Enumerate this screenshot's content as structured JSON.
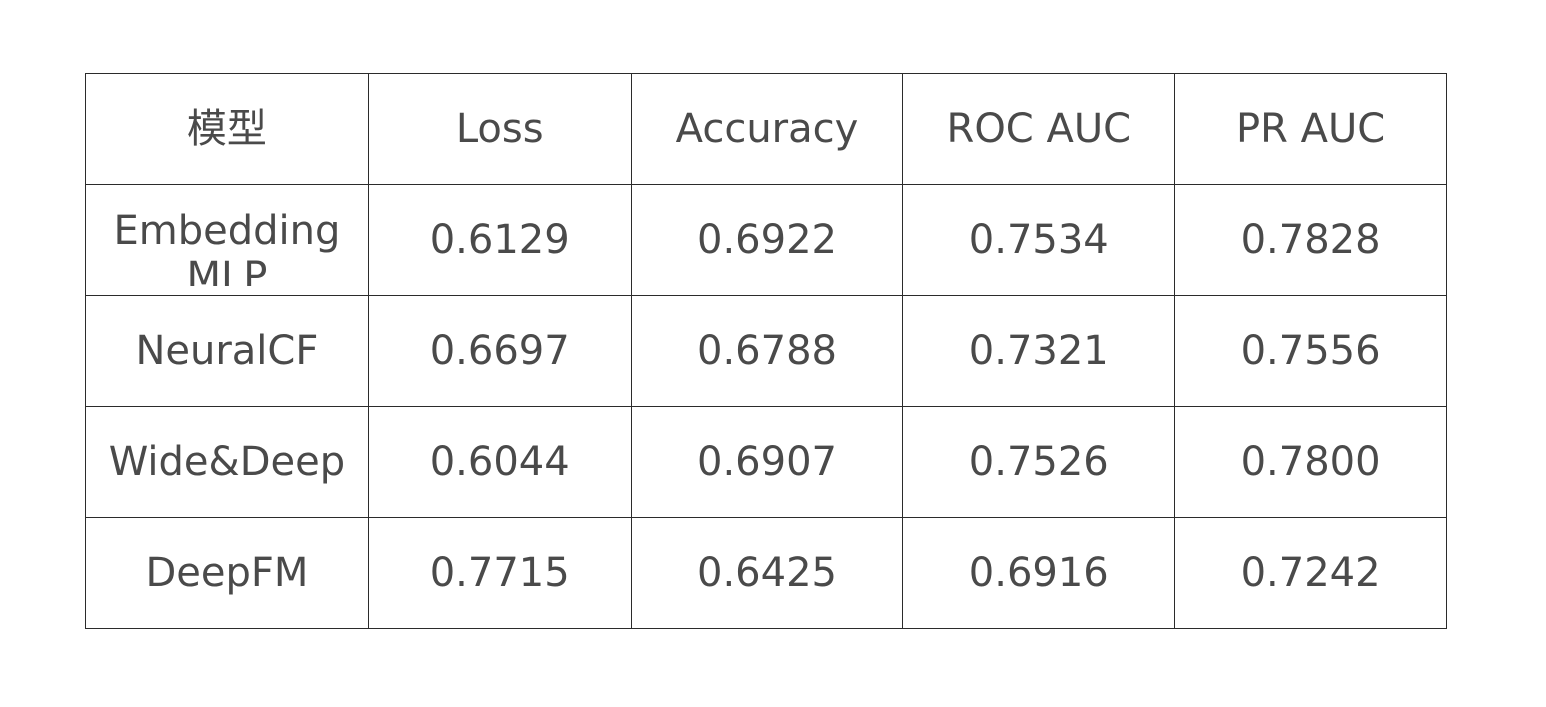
{
  "table": {
    "headers": [
      "模型",
      "Loss",
      "Accuracy",
      "ROC AUC",
      "PR AUC"
    ],
    "rows": [
      {
        "model": "Embedding MLP",
        "values": [
          "0.6129",
          "0.6922",
          "0.7534",
          "0.7828"
        ],
        "highlight": true
      },
      {
        "model": "NeuralCF",
        "values": [
          "0.6697",
          "0.6788",
          "0.7321",
          "0.7556"
        ],
        "highlight": false
      },
      {
        "model": "Wide&Deep",
        "values": [
          "0.6044",
          "0.6907",
          "0.7526",
          "0.7800"
        ],
        "highlight": true
      },
      {
        "model": "DeepFM",
        "values": [
          "0.7715",
          "0.6425",
          "0.6916",
          "0.7242"
        ],
        "highlight": false
      }
    ]
  },
  "colors": {
    "text": "#4a4a4a",
    "highlight": "#e0382b",
    "border": "#2b2b2b"
  }
}
